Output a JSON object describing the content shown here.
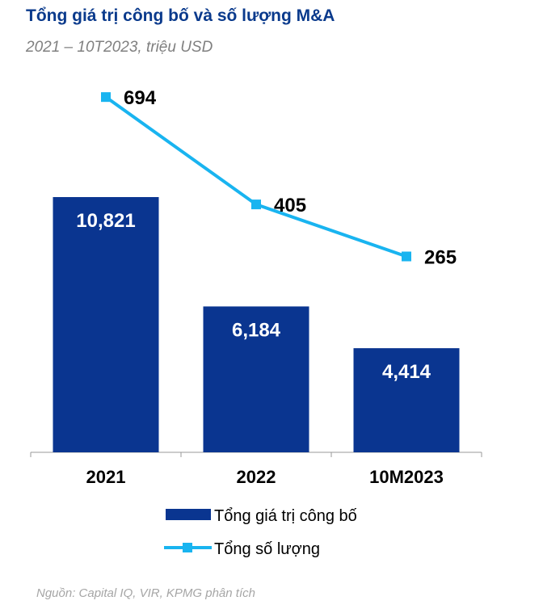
{
  "title": "Tổng giá trị công bố và số lượng M&A",
  "subtitle": "2021 – 10T2023, triệu USD",
  "source": "Nguồn: Capital IQ, VIR, KPMG phân tích",
  "chart_data": {
    "type": "bar",
    "categories": [
      "2021",
      "2022",
      "10M2023"
    ],
    "series": [
      {
        "name": "Tổng giá trị công bố",
        "type": "bar",
        "values": [
          10821,
          6184,
          4414
        ],
        "labels": [
          "10,821",
          "6,184",
          "4,414"
        ],
        "color": "#0a3590"
      },
      {
        "name": "Tổng số lượng",
        "type": "line",
        "values": [
          694,
          405,
          265
        ],
        "labels": [
          "694",
          "405",
          "265"
        ],
        "color": "#19b4f0"
      }
    ],
    "legend": "bottom",
    "grid": false
  }
}
